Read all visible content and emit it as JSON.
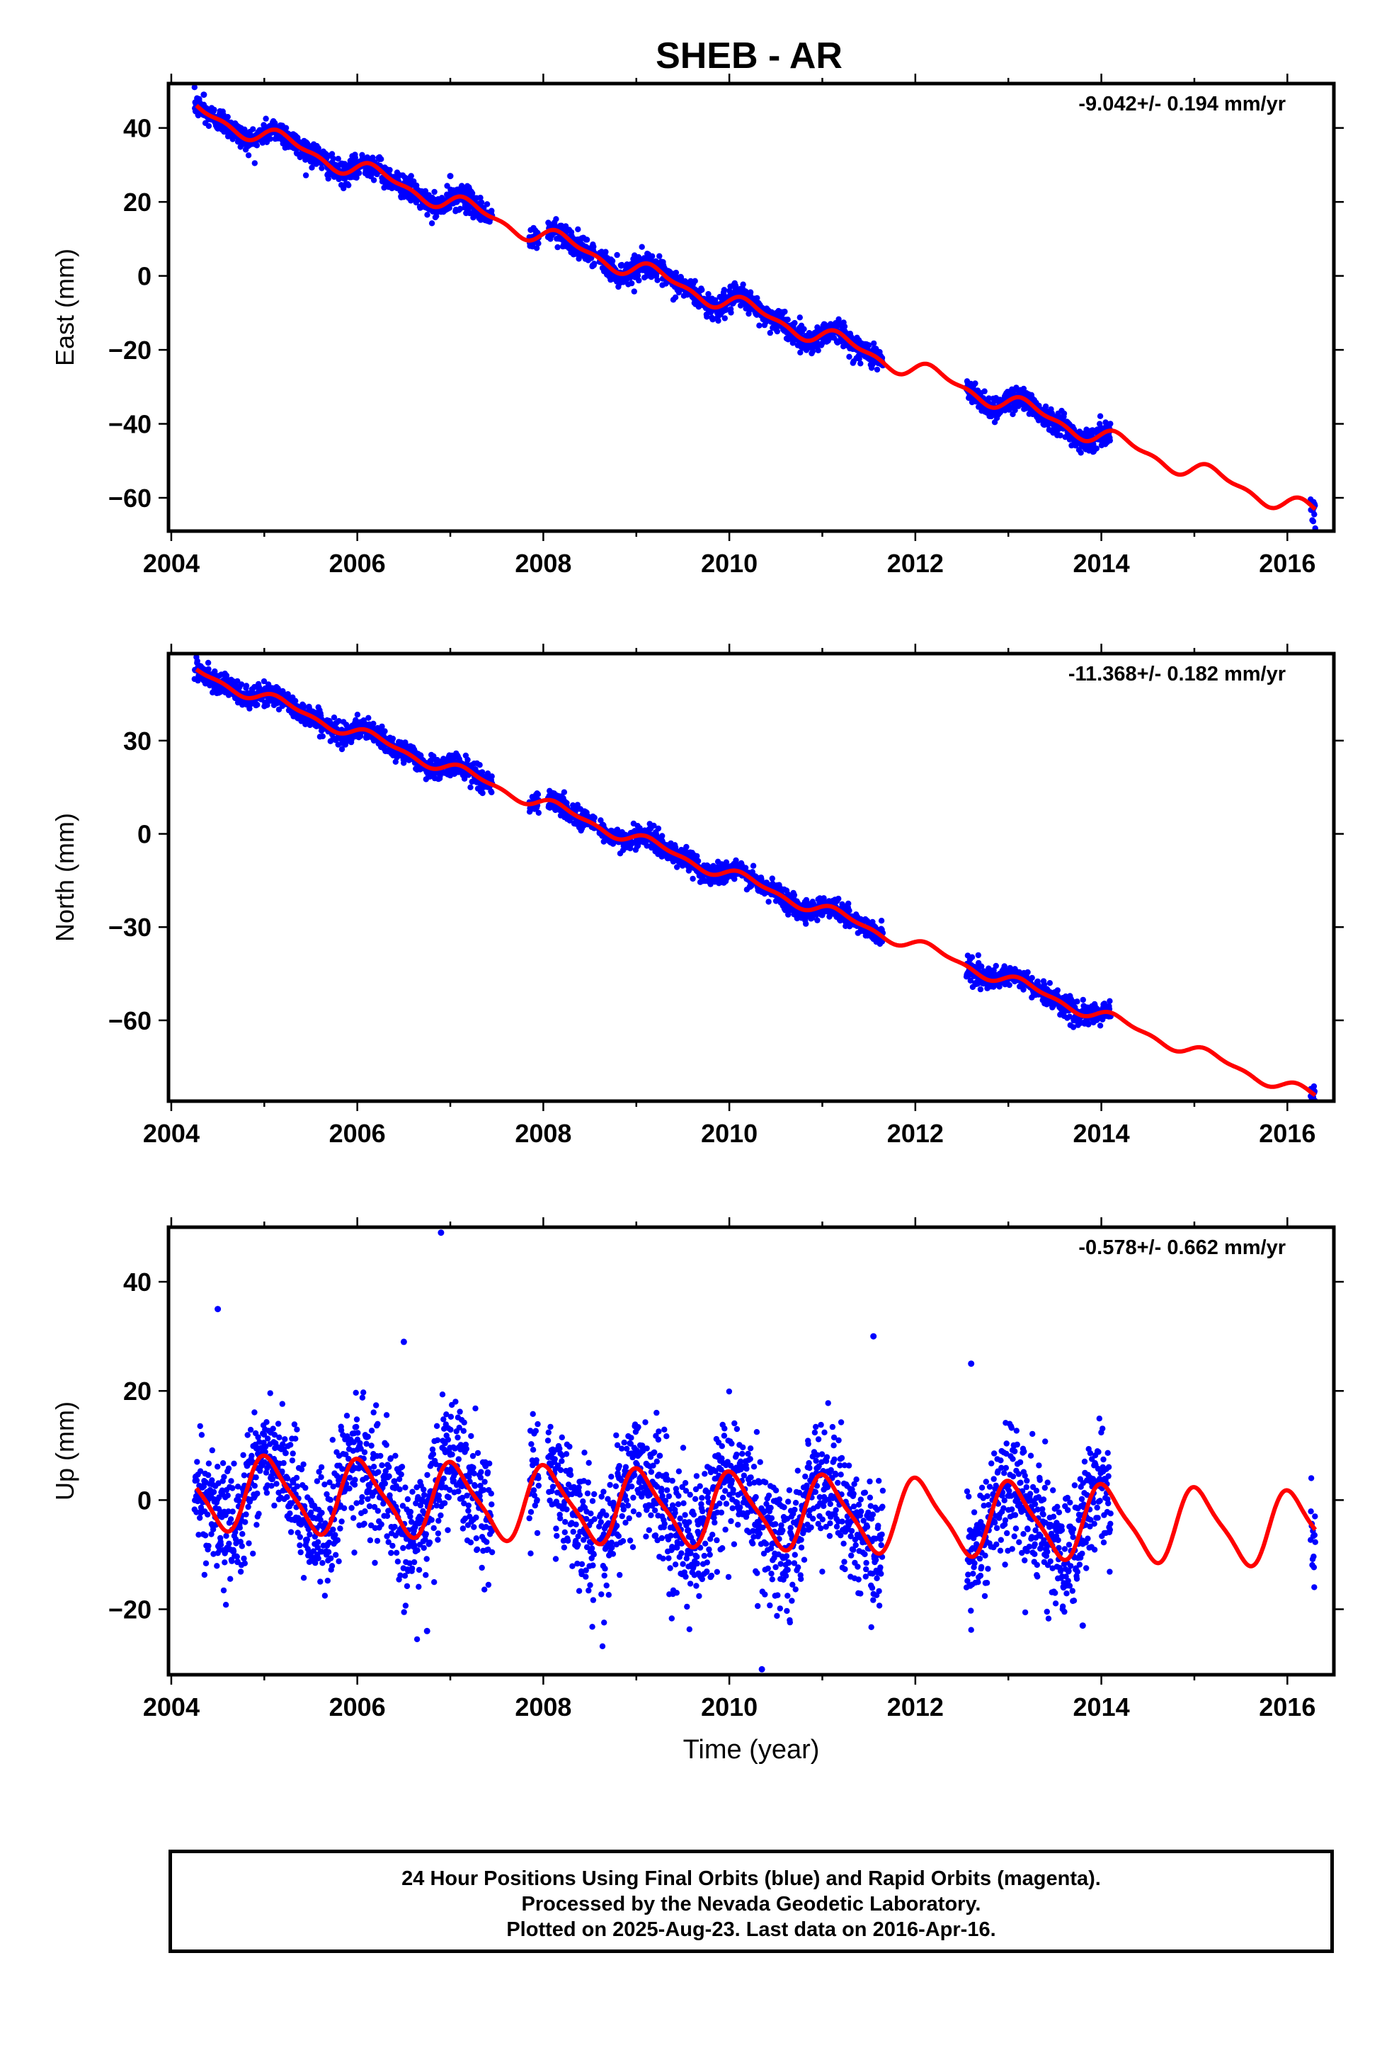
{
  "title": "SHEB - AR",
  "colors": {
    "points": "#0000ff",
    "model": "#ff0000",
    "frame": "#000000"
  },
  "chart_data": [
    {
      "type": "scatter",
      "component": "East",
      "ylabel": "East (mm)",
      "xlabel": "",
      "rate_label": "-9.042+/- 0.194 mm/yr",
      "xlim": [
        2003.97,
        2016.5
      ],
      "ylim": [
        -69,
        52
      ],
      "xticks": [
        2004,
        2006,
        2008,
        2010,
        2012,
        2014,
        2016
      ],
      "yticks": [
        40,
        20,
        0,
        -20,
        -40,
        -60
      ],
      "grid": false,
      "model": {
        "series": "red trend + seasonal model curve",
        "t0": 2004.27,
        "y0": 44.5,
        "rate_mm_per_yr": -9.042,
        "annual_amplitude": 2.2,
        "semiannual_amplitude": 1.0,
        "phase": 0.15
      },
      "data_segments": [
        [
          2004.25,
          2007.45
        ],
        [
          2007.85,
          2007.95
        ],
        [
          2008.05,
          2008.55
        ],
        [
          2008.6,
          2011.65
        ],
        [
          2012.55,
          2013.8
        ],
        [
          2013.8,
          2014.1
        ],
        [
          2016.25,
          2016.3
        ]
      ],
      "scatter_noise_mm": 1.6,
      "outliers": [
        [
          2007.0,
          27
        ],
        [
          2004.35,
          49
        ]
      ]
    },
    {
      "type": "scatter",
      "component": "North",
      "ylabel": "North (mm)",
      "xlabel": "",
      "rate_label": "-11.368+/- 0.182 mm/yr",
      "xlim": [
        2003.97,
        2016.5
      ],
      "ylim": [
        -86,
        58
      ],
      "xticks": [
        2004,
        2006,
        2008,
        2010,
        2012,
        2014,
        2016
      ],
      "yticks": [
        30,
        0,
        -30,
        -60
      ],
      "grid": false,
      "model": {
        "series": "red trend + seasonal model curve",
        "t0": 2004.27,
        "y0": 52,
        "rate_mm_per_yr": -11.368,
        "annual_amplitude": 1.8,
        "semiannual_amplitude": 0.8,
        "phase": 0.35
      },
      "data_segments": [
        [
          2004.25,
          2007.45
        ],
        [
          2007.85,
          2007.95
        ],
        [
          2008.05,
          2008.55
        ],
        [
          2008.6,
          2011.65
        ],
        [
          2012.55,
          2013.8
        ],
        [
          2013.8,
          2014.1
        ],
        [
          2016.25,
          2016.3
        ]
      ],
      "scatter_noise_mm": 1.7,
      "outliers": []
    },
    {
      "type": "scatter",
      "component": "Up",
      "ylabel": "Up (mm)",
      "xlabel": "Time (year)",
      "rate_label": "-0.578+/- 0.662 mm/yr",
      "xlim": [
        2003.97,
        2016.5
      ],
      "ylim": [
        -32,
        50
      ],
      "xticks": [
        2004,
        2006,
        2008,
        2010,
        2012,
        2014,
        2016
      ],
      "yticks": [
        40,
        20,
        0,
        -20
      ],
      "grid": false,
      "model": {
        "series": "red trend + seasonal model curve",
        "t0": 2004.27,
        "y0": 1.5,
        "rate_mm_per_yr": -0.578,
        "annual_amplitude": 6.5,
        "semiannual_amplitude": 1.5,
        "phase": 1.25
      },
      "data_segments": [
        [
          2004.25,
          2007.45
        ],
        [
          2007.85,
          2007.95
        ],
        [
          2008.05,
          2008.55
        ],
        [
          2008.6,
          2011.65
        ],
        [
          2012.55,
          2013.8
        ],
        [
          2013.8,
          2014.1
        ],
        [
          2016.25,
          2016.3
        ]
      ],
      "scatter_noise_mm": 5.5,
      "outliers": [
        [
          2004.5,
          35
        ],
        [
          2006.5,
          29
        ],
        [
          2006.9,
          49
        ],
        [
          2006.75,
          -24
        ],
        [
          2010.35,
          -31
        ],
        [
          2011.55,
          30
        ],
        [
          2012.6,
          25
        ],
        [
          2013.8,
          -23
        ]
      ]
    }
  ],
  "footer": {
    "line1": "24 Hour Positions Using Final Orbits (blue) and Rapid Orbits (magenta).",
    "line2": "Processed by the Nevada Geodetic Laboratory.",
    "line3": "Plotted on 2025-Aug-23. Last data on 2016-Apr-16."
  }
}
